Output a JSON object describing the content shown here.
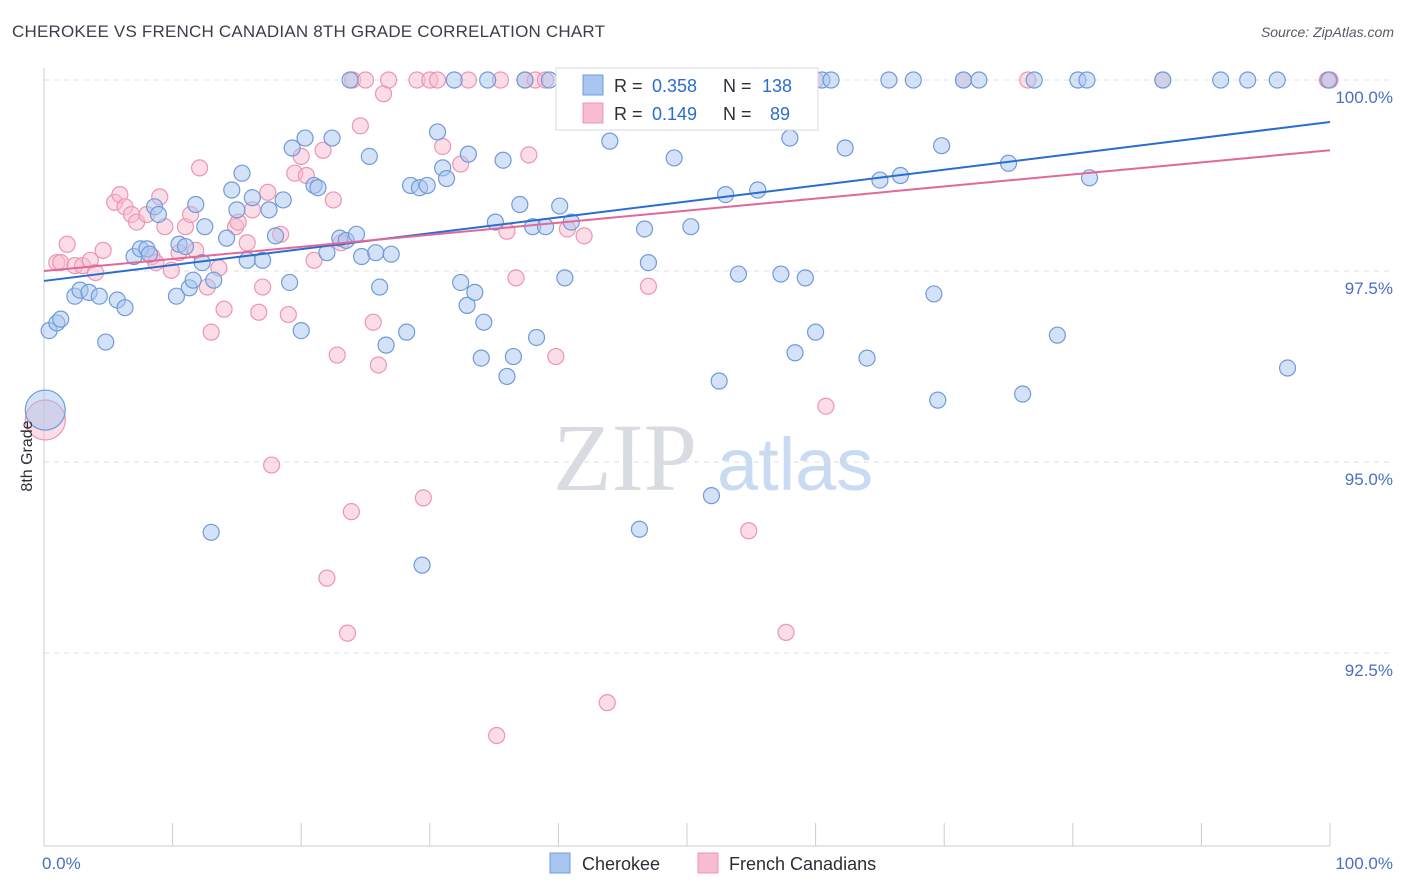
{
  "chart_data": {
    "type": "scatter",
    "title": "CHEROKEE VS FRENCH CANADIAN 8TH GRADE CORRELATION CHART",
    "source": "Source: ZipAtlas.com",
    "ylabel": "8th Grade",
    "xlim": [
      0,
      100
    ],
    "ylim": [
      90.1,
      100.4
    ],
    "x_tick_labels": [
      "0.0%",
      "100.0%"
    ],
    "y_ticks": [
      {
        "value": 100.0,
        "label": "100.0%"
      },
      {
        "value": 97.5,
        "label": "97.5%"
      },
      {
        "value": 95.0,
        "label": "95.0%"
      },
      {
        "value": 92.5,
        "label": "92.5%"
      }
    ],
    "legend_top": [
      {
        "r_label": "R = ",
        "r_value": "0.358",
        "n_label": "N = ",
        "n_value": "138"
      },
      {
        "r_label": "R = ",
        "r_value": "0.149",
        "n_label": "N = ",
        "n_value": "89"
      }
    ],
    "watermark": {
      "zip": "ZIP",
      "atlas": "atlas"
    },
    "colors": {
      "cherokee_fill": "#a9c6f0",
      "cherokee_stroke": "#6f9bd9",
      "cherokee_line": "#2a6dd1",
      "french_fill": "#f7bcd0",
      "french_stroke": "#ef94b1",
      "french_line": "#e2679a",
      "value_text": "#2a6dd1",
      "grid": "#dcdfe5"
    },
    "series": [
      {
        "name": "Cherokee",
        "trend": [
          {
            "x": 0,
            "y": 97.37
          },
          {
            "x": 100,
            "y": 99.45
          }
        ],
        "points": [
          [
            0.4,
            96.72
          ],
          [
            1.0,
            96.82
          ],
          [
            1.3,
            96.87
          ],
          [
            2.4,
            97.17
          ],
          [
            2.8,
            97.25
          ],
          [
            3.5,
            97.22
          ],
          [
            4.3,
            97.17
          ],
          [
            4.8,
            96.57
          ],
          [
            5.7,
            97.12
          ],
          [
            6.3,
            97.02
          ],
          [
            7.0,
            97.69
          ],
          [
            7.5,
            97.79
          ],
          [
            8.0,
            97.79
          ],
          [
            8.2,
            97.72
          ],
          [
            8.6,
            98.34
          ],
          [
            8.9,
            98.24
          ],
          [
            10.3,
            97.17
          ],
          [
            10.5,
            97.85
          ],
          [
            11.0,
            97.82
          ],
          [
            11.3,
            97.28
          ],
          [
            11.6,
            97.38
          ],
          [
            11.8,
            98.37
          ],
          [
            12.3,
            97.61
          ],
          [
            12.5,
            98.08
          ],
          [
            13.0,
            94.08
          ],
          [
            13.2,
            97.38
          ],
          [
            14.2,
            97.93
          ],
          [
            14.6,
            98.56
          ],
          [
            15.0,
            98.3
          ],
          [
            15.4,
            98.78
          ],
          [
            15.8,
            97.64
          ],
          [
            16.2,
            98.46
          ],
          [
            17.0,
            97.64
          ],
          [
            17.5,
            98.3
          ],
          [
            18.0,
            97.96
          ],
          [
            18.6,
            98.43
          ],
          [
            19.1,
            97.35
          ],
          [
            19.3,
            99.11
          ],
          [
            20.0,
            96.72
          ],
          [
            20.3,
            99.24
          ],
          [
            21.0,
            98.62
          ],
          [
            21.3,
            98.59
          ],
          [
            22.0,
            97.74
          ],
          [
            22.4,
            99.24
          ],
          [
            23.0,
            97.93
          ],
          [
            23.5,
            97.9
          ],
          [
            23.8,
            100.0
          ],
          [
            24.3,
            97.98
          ],
          [
            24.7,
            97.69
          ],
          [
            25.3,
            99.0
          ],
          [
            25.8,
            97.74
          ],
          [
            26.1,
            97.29
          ],
          [
            26.6,
            96.53
          ],
          [
            27.0,
            97.72
          ],
          [
            28.2,
            96.7
          ],
          [
            28.5,
            98.62
          ],
          [
            29.2,
            98.59
          ],
          [
            29.4,
            93.65
          ],
          [
            29.8,
            98.62
          ],
          [
            30.6,
            99.32
          ],
          [
            31.0,
            98.85
          ],
          [
            31.3,
            98.71
          ],
          [
            31.9,
            100.0
          ],
          [
            32.4,
            97.35
          ],
          [
            32.9,
            97.05
          ],
          [
            33.0,
            99.03
          ],
          [
            33.5,
            97.22
          ],
          [
            34.0,
            96.36
          ],
          [
            34.2,
            96.83
          ],
          [
            34.5,
            100.0
          ],
          [
            35.1,
            98.14
          ],
          [
            35.7,
            98.95
          ],
          [
            36.0,
            96.12
          ],
          [
            36.5,
            96.38
          ],
          [
            37.0,
            98.37
          ],
          [
            37.4,
            100.0
          ],
          [
            38.0,
            98.08
          ],
          [
            38.3,
            96.63
          ],
          [
            39.0,
            98.08
          ],
          [
            39.3,
            100.0
          ],
          [
            40.1,
            98.35
          ],
          [
            40.5,
            97.41
          ],
          [
            41.0,
            98.14
          ],
          [
            42.4,
            100.0
          ],
          [
            44.0,
            99.2
          ],
          [
            45.7,
            100.0
          ],
          [
            46.3,
            94.12
          ],
          [
            46.7,
            98.05
          ],
          [
            47.0,
            97.61
          ],
          [
            48.3,
            100.0
          ],
          [
            49.0,
            98.98
          ],
          [
            50.3,
            98.08
          ],
          [
            50.7,
            100.0
          ],
          [
            51.9,
            94.56
          ],
          [
            52.5,
            96.06
          ],
          [
            53.0,
            98.5
          ],
          [
            54.0,
            97.46
          ],
          [
            55.5,
            98.56
          ],
          [
            56.3,
            100.0
          ],
          [
            57.3,
            97.46
          ],
          [
            58.0,
            99.24
          ],
          [
            58.4,
            96.43
          ],
          [
            59.2,
            97.41
          ],
          [
            60.0,
            96.7
          ],
          [
            60.5,
            100.0
          ],
          [
            61.2,
            100.0
          ],
          [
            62.3,
            99.11
          ],
          [
            64.0,
            96.36
          ],
          [
            65.0,
            98.69
          ],
          [
            65.7,
            100.0
          ],
          [
            66.6,
            98.75
          ],
          [
            67.6,
            100.0
          ],
          [
            69.2,
            97.2
          ],
          [
            69.5,
            95.81
          ],
          [
            69.8,
            99.14
          ],
          [
            71.5,
            100.0
          ],
          [
            72.7,
            100.0
          ],
          [
            75.0,
            98.91
          ],
          [
            76.1,
            95.89
          ],
          [
            77.0,
            100.0
          ],
          [
            78.8,
            96.66
          ],
          [
            80.4,
            100.0
          ],
          [
            81.1,
            100.0
          ],
          [
            81.3,
            98.72
          ],
          [
            87.0,
            100.0
          ],
          [
            91.5,
            100.0
          ],
          [
            93.6,
            100.0
          ],
          [
            95.9,
            100.0
          ],
          [
            96.7,
            96.23
          ],
          [
            99.9,
            100.0
          ]
        ],
        "big_point": [
          0.1,
          95.68
        ]
      },
      {
        "name": "French Canadians",
        "trend": [
          {
            "x": 0,
            "y": 97.5
          },
          {
            "x": 100,
            "y": 99.08
          }
        ],
        "points": [
          [
            1.0,
            97.61
          ],
          [
            1.3,
            97.61
          ],
          [
            1.8,
            97.85
          ],
          [
            2.4,
            97.57
          ],
          [
            3.0,
            97.57
          ],
          [
            3.6,
            97.64
          ],
          [
            4.0,
            97.48
          ],
          [
            4.6,
            97.77
          ],
          [
            5.5,
            98.4
          ],
          [
            5.9,
            98.5
          ],
          [
            6.3,
            98.34
          ],
          [
            6.8,
            98.24
          ],
          [
            7.2,
            98.14
          ],
          [
            8.0,
            98.24
          ],
          [
            8.4,
            97.69
          ],
          [
            8.7,
            97.61
          ],
          [
            9.0,
            98.47
          ],
          [
            9.4,
            98.08
          ],
          [
            9.9,
            97.51
          ],
          [
            10.5,
            97.74
          ],
          [
            11.0,
            98.08
          ],
          [
            11.4,
            98.24
          ],
          [
            11.8,
            97.77
          ],
          [
            12.1,
            98.85
          ],
          [
            12.7,
            97.29
          ],
          [
            13.0,
            96.7
          ],
          [
            13.6,
            97.54
          ],
          [
            14.0,
            97.0
          ],
          [
            14.9,
            98.08
          ],
          [
            15.1,
            98.14
          ],
          [
            15.8,
            97.87
          ],
          [
            16.2,
            98.3
          ],
          [
            16.7,
            96.96
          ],
          [
            17.0,
            97.29
          ],
          [
            17.4,
            98.53
          ],
          [
            17.7,
            94.96
          ],
          [
            18.4,
            97.98
          ],
          [
            19.0,
            96.93
          ],
          [
            19.5,
            98.78
          ],
          [
            20.0,
            99.0
          ],
          [
            20.4,
            98.75
          ],
          [
            21.0,
            97.64
          ],
          [
            21.7,
            99.08
          ],
          [
            22.0,
            93.48
          ],
          [
            22.5,
            98.43
          ],
          [
            22.8,
            96.4
          ],
          [
            23.1,
            97.87
          ],
          [
            23.6,
            92.76
          ],
          [
            23.9,
            94.35
          ],
          [
            24.0,
            100.0
          ],
          [
            24.6,
            99.4
          ],
          [
            25.0,
            100.0
          ],
          [
            25.6,
            96.83
          ],
          [
            26.0,
            96.27
          ],
          [
            26.4,
            99.82
          ],
          [
            26.8,
            100.0
          ],
          [
            29.0,
            100.0
          ],
          [
            29.5,
            94.53
          ],
          [
            30.0,
            100.0
          ],
          [
            30.6,
            100.0
          ],
          [
            31.0,
            99.13
          ],
          [
            32.4,
            98.9
          ],
          [
            33.0,
            100.0
          ],
          [
            35.2,
            91.42
          ],
          [
            35.5,
            100.0
          ],
          [
            36.0,
            98.02
          ],
          [
            36.7,
            97.41
          ],
          [
            37.4,
            100.0
          ],
          [
            37.7,
            99.02
          ],
          [
            38.2,
            100.0
          ],
          [
            39.0,
            100.0
          ],
          [
            39.8,
            96.38
          ],
          [
            40.7,
            98.05
          ],
          [
            42.0,
            97.96
          ],
          [
            43.8,
            91.85
          ],
          [
            46.0,
            100.0
          ],
          [
            47.0,
            97.3
          ],
          [
            48.0,
            100.0
          ],
          [
            52.5,
            100.0
          ],
          [
            54.8,
            94.1
          ],
          [
            55.8,
            100.0
          ],
          [
            57.7,
            92.77
          ],
          [
            60.0,
            100.0
          ],
          [
            60.8,
            95.73
          ],
          [
            71.5,
            100.0
          ],
          [
            76.5,
            100.0
          ],
          [
            87.0,
            100.0
          ],
          [
            99.8,
            100.0
          ],
          [
            100.0,
            100.0
          ]
        ],
        "big_point": [
          0.1,
          95.55
        ]
      }
    ],
    "legend_bottom": [
      "Cherokee",
      "French Canadians"
    ]
  }
}
